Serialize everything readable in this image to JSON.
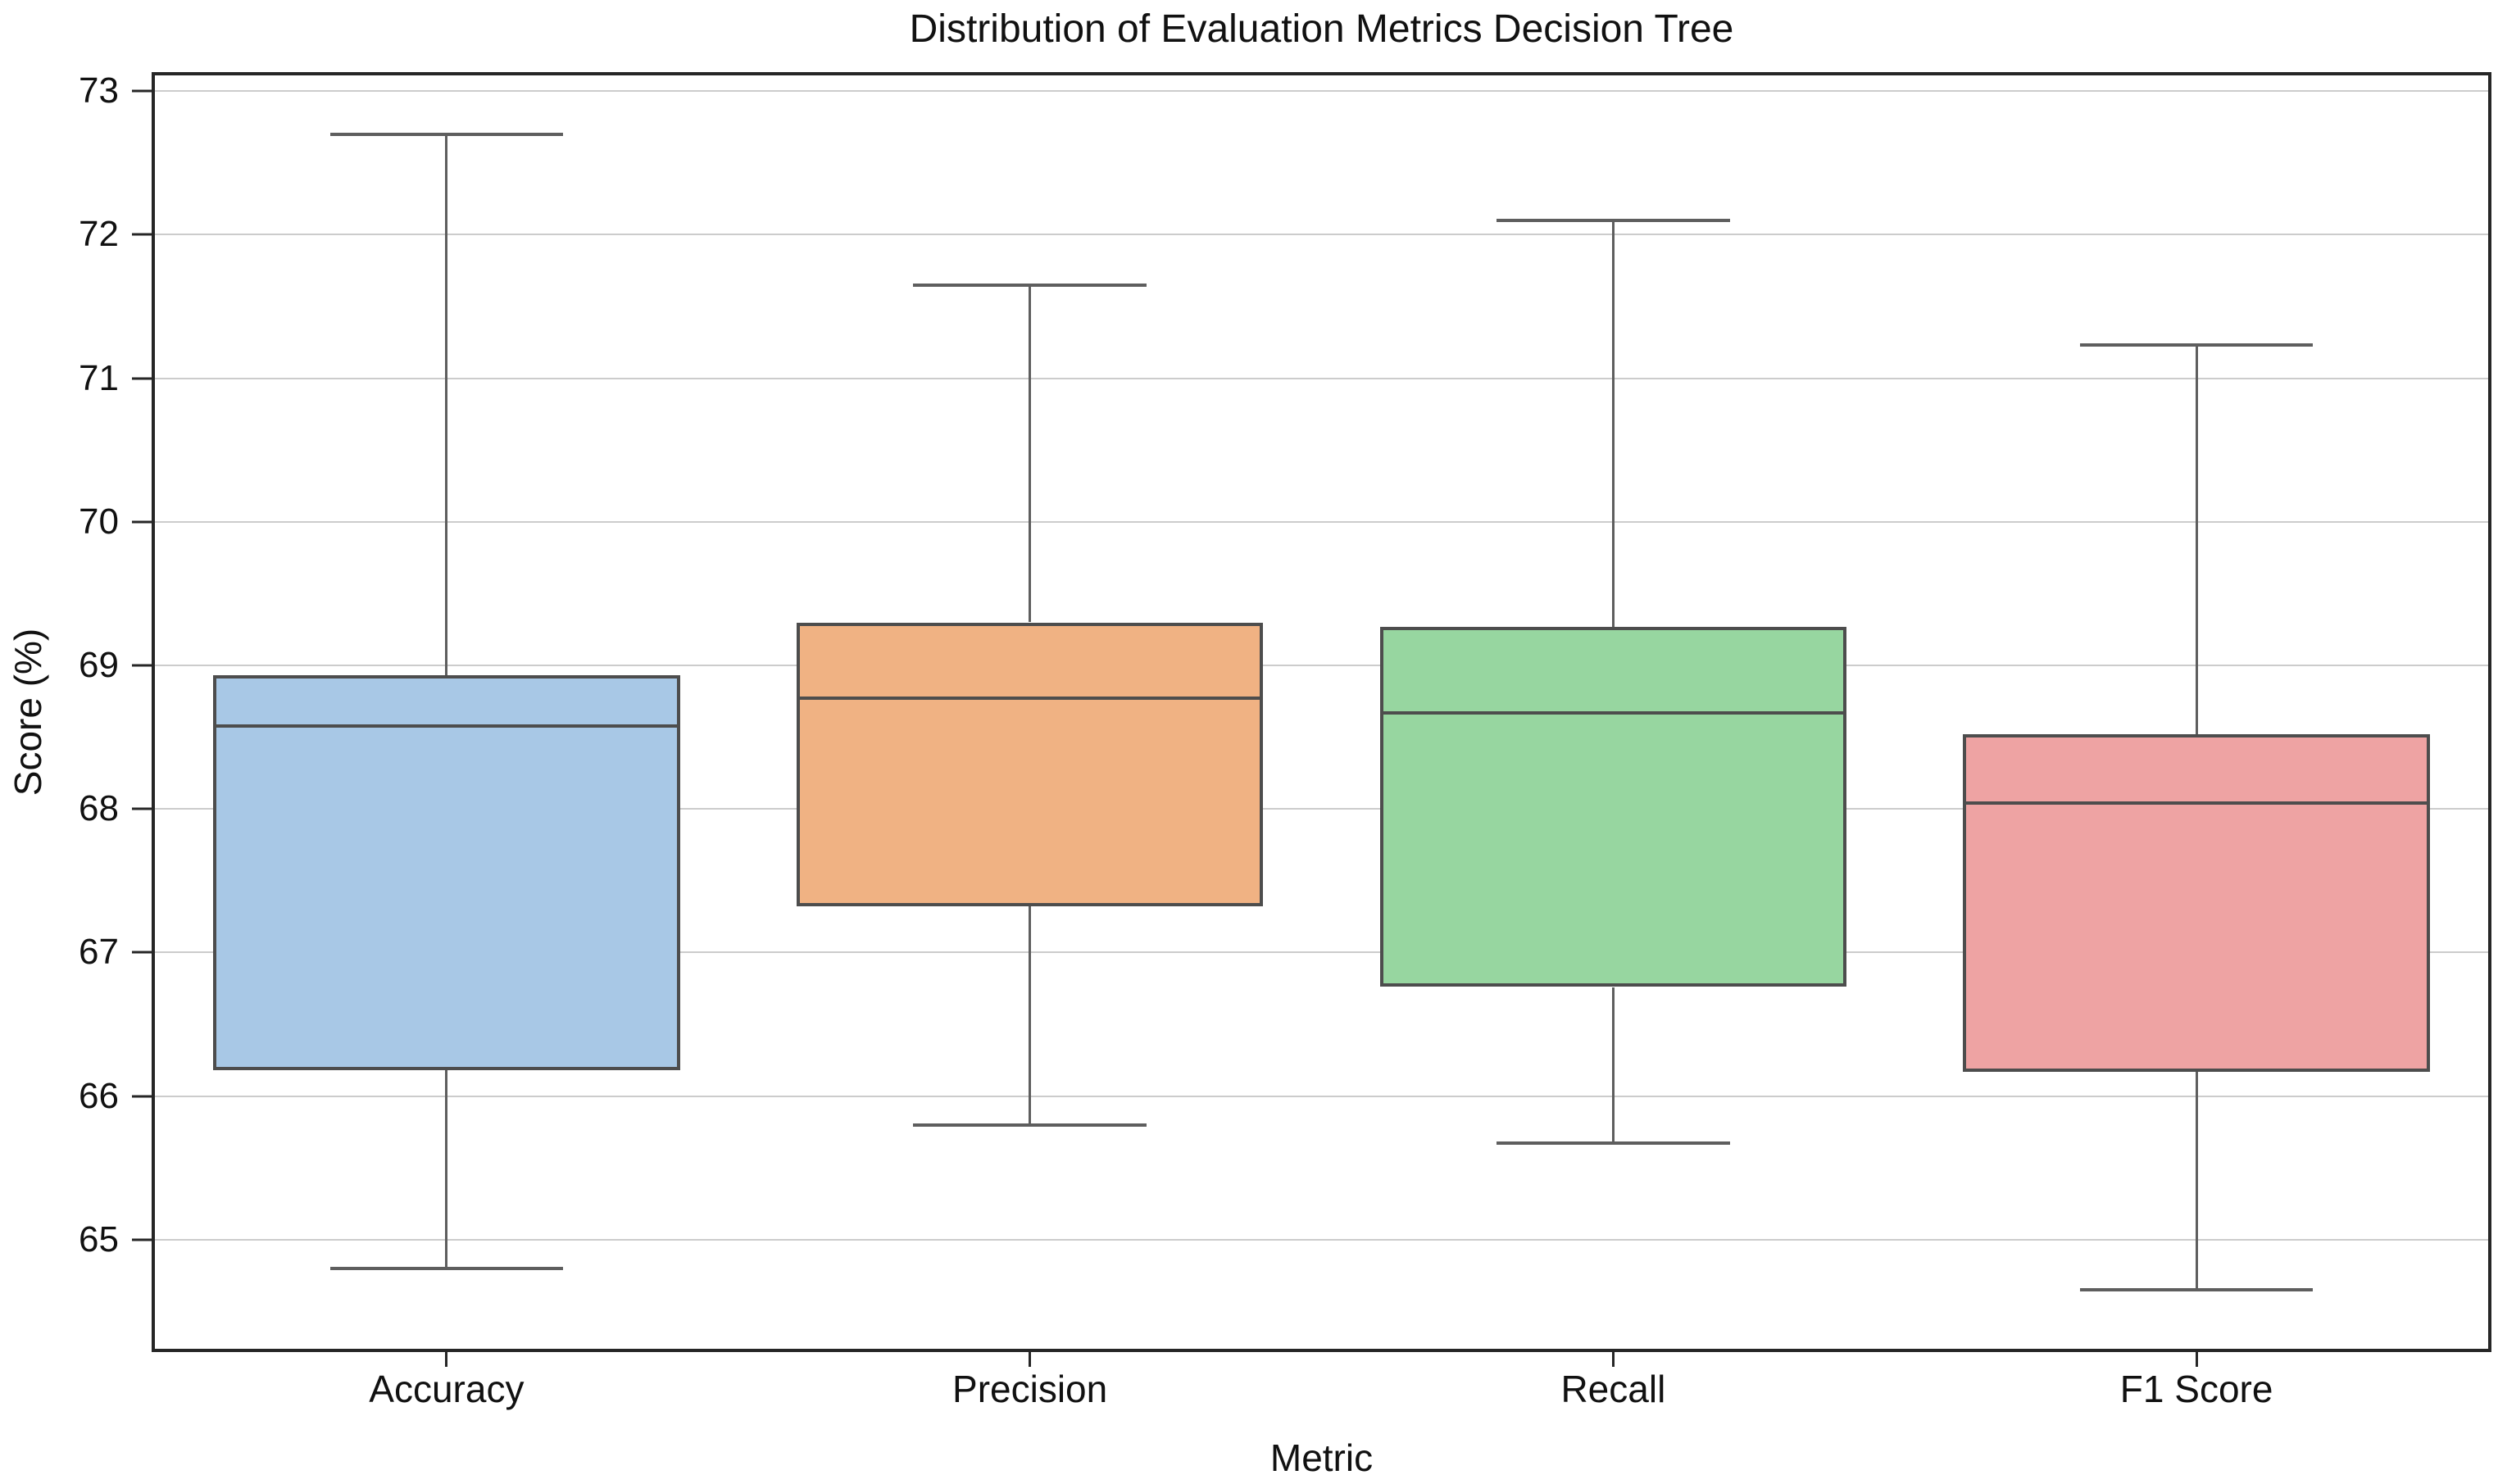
{
  "figure": {
    "title": "Distribution of Evaluation Metrics Decision Tree",
    "xlabel": "Metric",
    "ylabel": "Score (%)"
  },
  "chart_data": {
    "type": "boxplot",
    "title": "Distribution of Evaluation Metrics Decision Tree",
    "xlabel": "Metric",
    "ylabel": "Score (%)",
    "categories": [
      "Accuracy",
      "Precision",
      "Recall",
      "F1 Score"
    ],
    "series": [
      {
        "name": "Accuracy",
        "whisker_low": 64.8,
        "q1": 66.18,
        "median": 68.58,
        "q3": 68.93,
        "whisker_high": 72.7,
        "fill_color": "#A8C8E6"
      },
      {
        "name": "Precision",
        "whisker_low": 65.8,
        "q1": 67.32,
        "median": 68.77,
        "q3": 69.3,
        "whisker_high": 71.65,
        "fill_color": "#F0B283"
      },
      {
        "name": "Recall",
        "whisker_low": 65.67,
        "q1": 66.76,
        "median": 68.67,
        "q3": 69.27,
        "whisker_high": 72.1,
        "fill_color": "#97D6A0"
      },
      {
        "name": "F1 Score",
        "whisker_low": 64.65,
        "q1": 66.17,
        "median": 68.04,
        "q3": 68.52,
        "whisker_high": 71.23,
        "fill_color": "#EEA3A3"
      }
    ],
    "y_ticks": [
      "65",
      "66",
      "67",
      "68",
      "69",
      "70",
      "71",
      "72",
      "73"
    ],
    "ylim": [
      64.24,
      73.11
    ],
    "grid": "horizontal",
    "legend": "none",
    "outliers": [],
    "style": {
      "box_edge_color": "#4d4d4d",
      "median_color": "#4d4d4d",
      "whisker_color": "#5e5e5e",
      "gridline_color": "#cccccc",
      "spine_color": "#262626",
      "background_color": "#ffffff",
      "box_width_frac": 0.8,
      "cap_width_frac": 0.4
    }
  }
}
